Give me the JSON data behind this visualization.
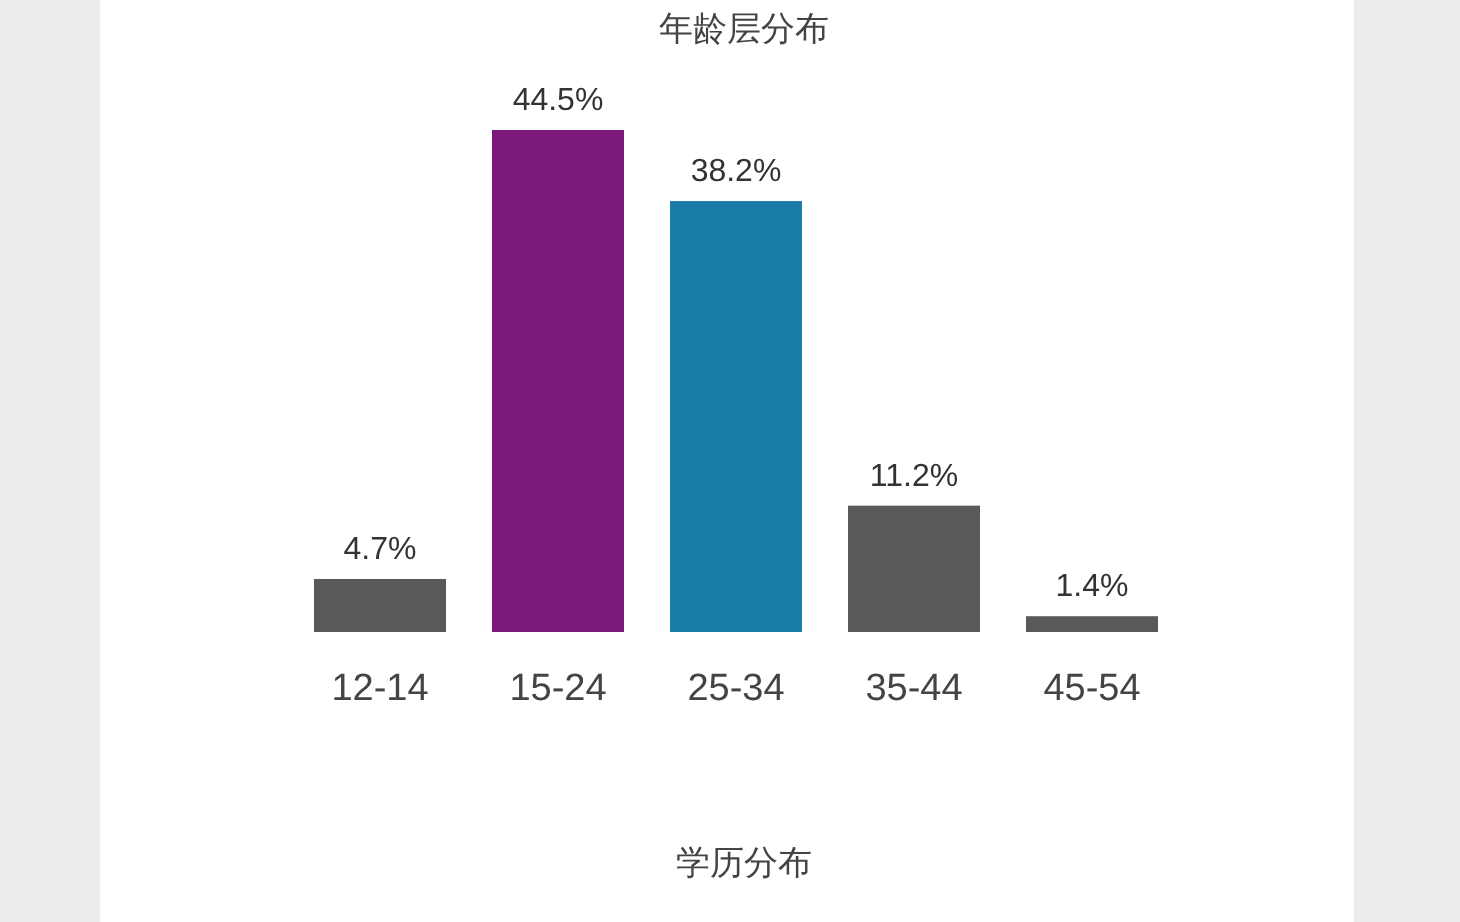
{
  "chart_data": {
    "type": "bar",
    "title": "年龄层分布",
    "categories": [
      "12-14",
      "15-24",
      "25-34",
      "35-44",
      "45-54"
    ],
    "values": [
      4.7,
      44.5,
      38.2,
      11.2,
      1.4
    ],
    "colors": [
      "#59595b",
      "#7b1a7a",
      "#1a7ca8",
      "#59595b",
      "#59595b"
    ],
    "value_labels": [
      "4.7%",
      "44.5%",
      "38.2%",
      "11.2%",
      "1.4%"
    ],
    "annotations": [
      "学历分布"
    ]
  }
}
